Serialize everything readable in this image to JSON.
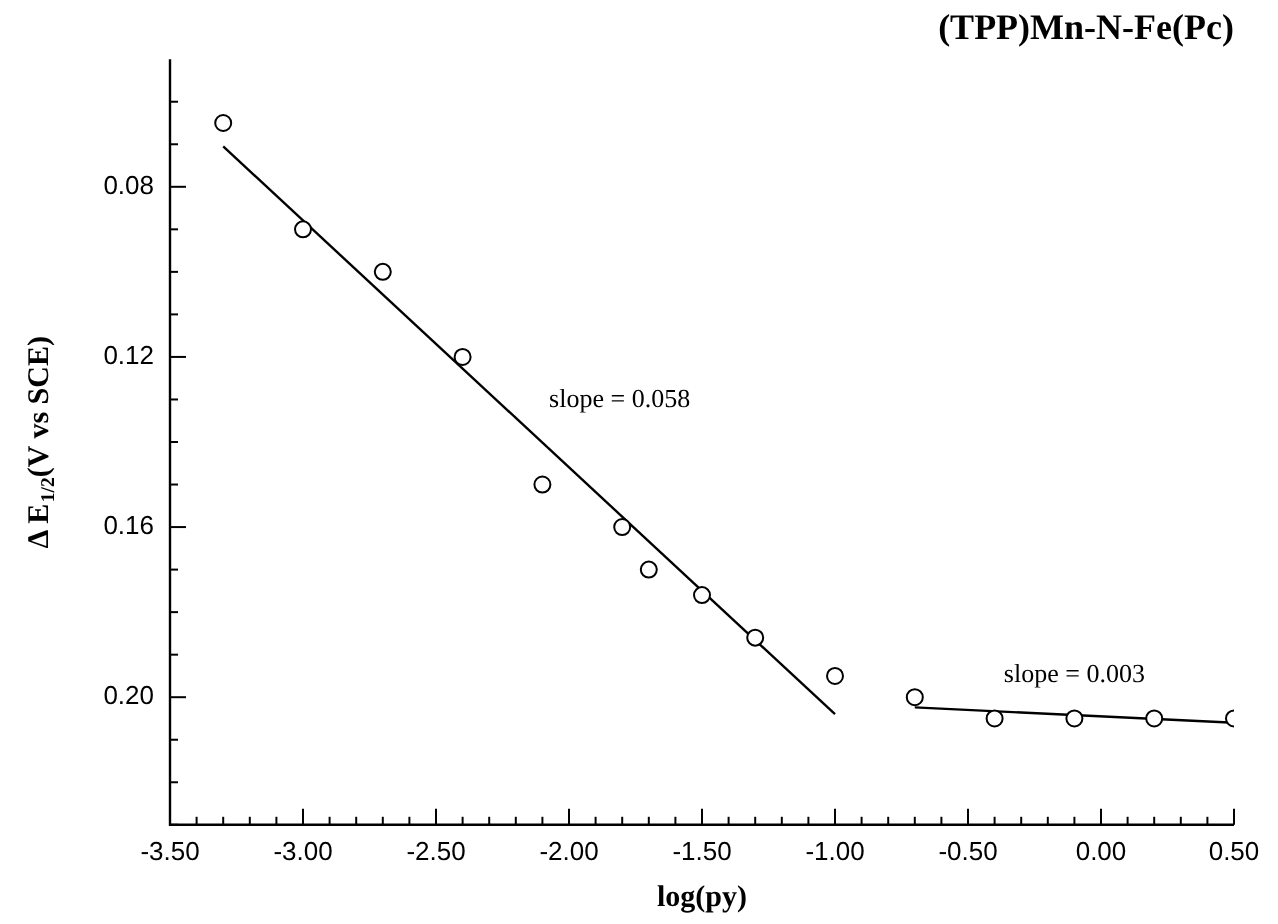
{
  "chart_data": {
    "type": "scatter",
    "title": "(TPP)Mn-N-Fe(Pc)",
    "xlabel": "log(py)",
    "ylabel": "Δ E$_{1/2}$(V vs SCE)",
    "xlim": [
      -3.5,
      0.5
    ],
    "xticks": [
      {
        "value": -3.5,
        "label": "-3.50"
      },
      {
        "value": -3.4,
        "label": null
      },
      {
        "value": -3.3,
        "label": null
      },
      {
        "value": -3.2,
        "label": null
      },
      {
        "value": -3.1,
        "label": null
      },
      {
        "value": -3.0,
        "label": "-3.00"
      },
      {
        "value": -2.9,
        "label": null
      },
      {
        "value": -2.8,
        "label": null
      },
      {
        "value": -2.7,
        "label": null
      },
      {
        "value": -2.6,
        "label": null
      },
      {
        "value": -2.5,
        "label": "-2.50"
      },
      {
        "value": -2.4,
        "label": null
      },
      {
        "value": -2.3,
        "label": null
      },
      {
        "value": -2.2,
        "label": null
      },
      {
        "value": -2.1,
        "label": null
      },
      {
        "value": -2.0,
        "label": "-2.00"
      },
      {
        "value": -1.9,
        "label": null
      },
      {
        "value": -1.8,
        "label": null
      },
      {
        "value": -1.7,
        "label": null
      },
      {
        "value": -1.6,
        "label": null
      },
      {
        "value": -1.5,
        "label": "-1.50"
      },
      {
        "value": -1.4,
        "label": null
      },
      {
        "value": -1.3,
        "label": null
      },
      {
        "value": -1.2,
        "label": null
      },
      {
        "value": -1.1,
        "label": null
      },
      {
        "value": -1.0,
        "label": "-1.00"
      },
      {
        "value": -0.9,
        "label": null
      },
      {
        "value": -0.8,
        "label": null
      },
      {
        "value": -0.7,
        "label": null
      },
      {
        "value": -0.6,
        "label": null
      },
      {
        "value": -0.5,
        "label": "-0.50"
      },
      {
        "value": -0.4,
        "label": null
      },
      {
        "value": -0.3,
        "label": null
      },
      {
        "value": -0.2,
        "label": null
      },
      {
        "value": -0.1,
        "label": null
      },
      {
        "value": 0.0,
        "label": "0.00"
      },
      {
        "value": 0.1,
        "label": null
      },
      {
        "value": 0.2,
        "label": null
      },
      {
        "value": 0.3,
        "label": null
      },
      {
        "value": 0.4,
        "label": null
      },
      {
        "value": 0.5,
        "label": "0.50"
      }
    ],
    "ylim": [
      0.23,
      0.05
    ],
    "yticks": [
      {
        "value": 0.06,
        "label": null
      },
      {
        "value": 0.07,
        "label": null
      },
      {
        "value": 0.08,
        "label": "0.08"
      },
      {
        "value": 0.09,
        "label": null
      },
      {
        "value": 0.1,
        "label": null
      },
      {
        "value": 0.11,
        "label": null
      },
      {
        "value": 0.12,
        "label": "0.12"
      },
      {
        "value": 0.13,
        "label": null
      },
      {
        "value": 0.14,
        "label": null
      },
      {
        "value": 0.15,
        "label": null
      },
      {
        "value": 0.16,
        "label": "0.16"
      },
      {
        "value": 0.17,
        "label": null
      },
      {
        "value": 0.18,
        "label": null
      },
      {
        "value": 0.19,
        "label": null
      },
      {
        "value": 0.2,
        "label": "0.20"
      },
      {
        "value": 0.21,
        "label": null
      },
      {
        "value": 0.22,
        "label": null
      },
      {
        "value": 0.23,
        "label": null
      }
    ],
    "series": [
      {
        "color": "#000000",
        "marker": "circle",
        "x": [
          -3.3,
          -3.0,
          -2.7,
          -2.4,
          -2.1,
          -1.8,
          -1.7,
          -1.5,
          -1.3,
          -1.0
        ],
        "values": [
          0.065,
          0.09,
          0.1,
          0.12,
          0.15,
          0.16,
          0.17,
          0.176,
          0.186,
          0.195
        ]
      },
      {
        "color": "#000000",
        "marker": "circle",
        "x": [
          -0.7,
          -0.4,
          -0.1,
          0.2,
          0.5
        ],
        "values": [
          0.2,
          0.205,
          0.205,
          0.205,
          0.205
        ]
      },
      {
        "type": "line",
        "color": "#000000",
        "marker": "none",
        "x": [
          -3.3,
          -1.0
        ],
        "values": [
          0.0705,
          0.204
        ]
      },
      {
        "type": "line",
        "color": "#000000",
        "marker": "none",
        "x": [
          -0.7,
          0.5
        ],
        "values": [
          0.2024,
          0.206
        ]
      }
    ],
    "annotations": [
      "slope = 0.058",
      "slope = 0.003"
    ],
    "grid": false,
    "legend": false
  }
}
